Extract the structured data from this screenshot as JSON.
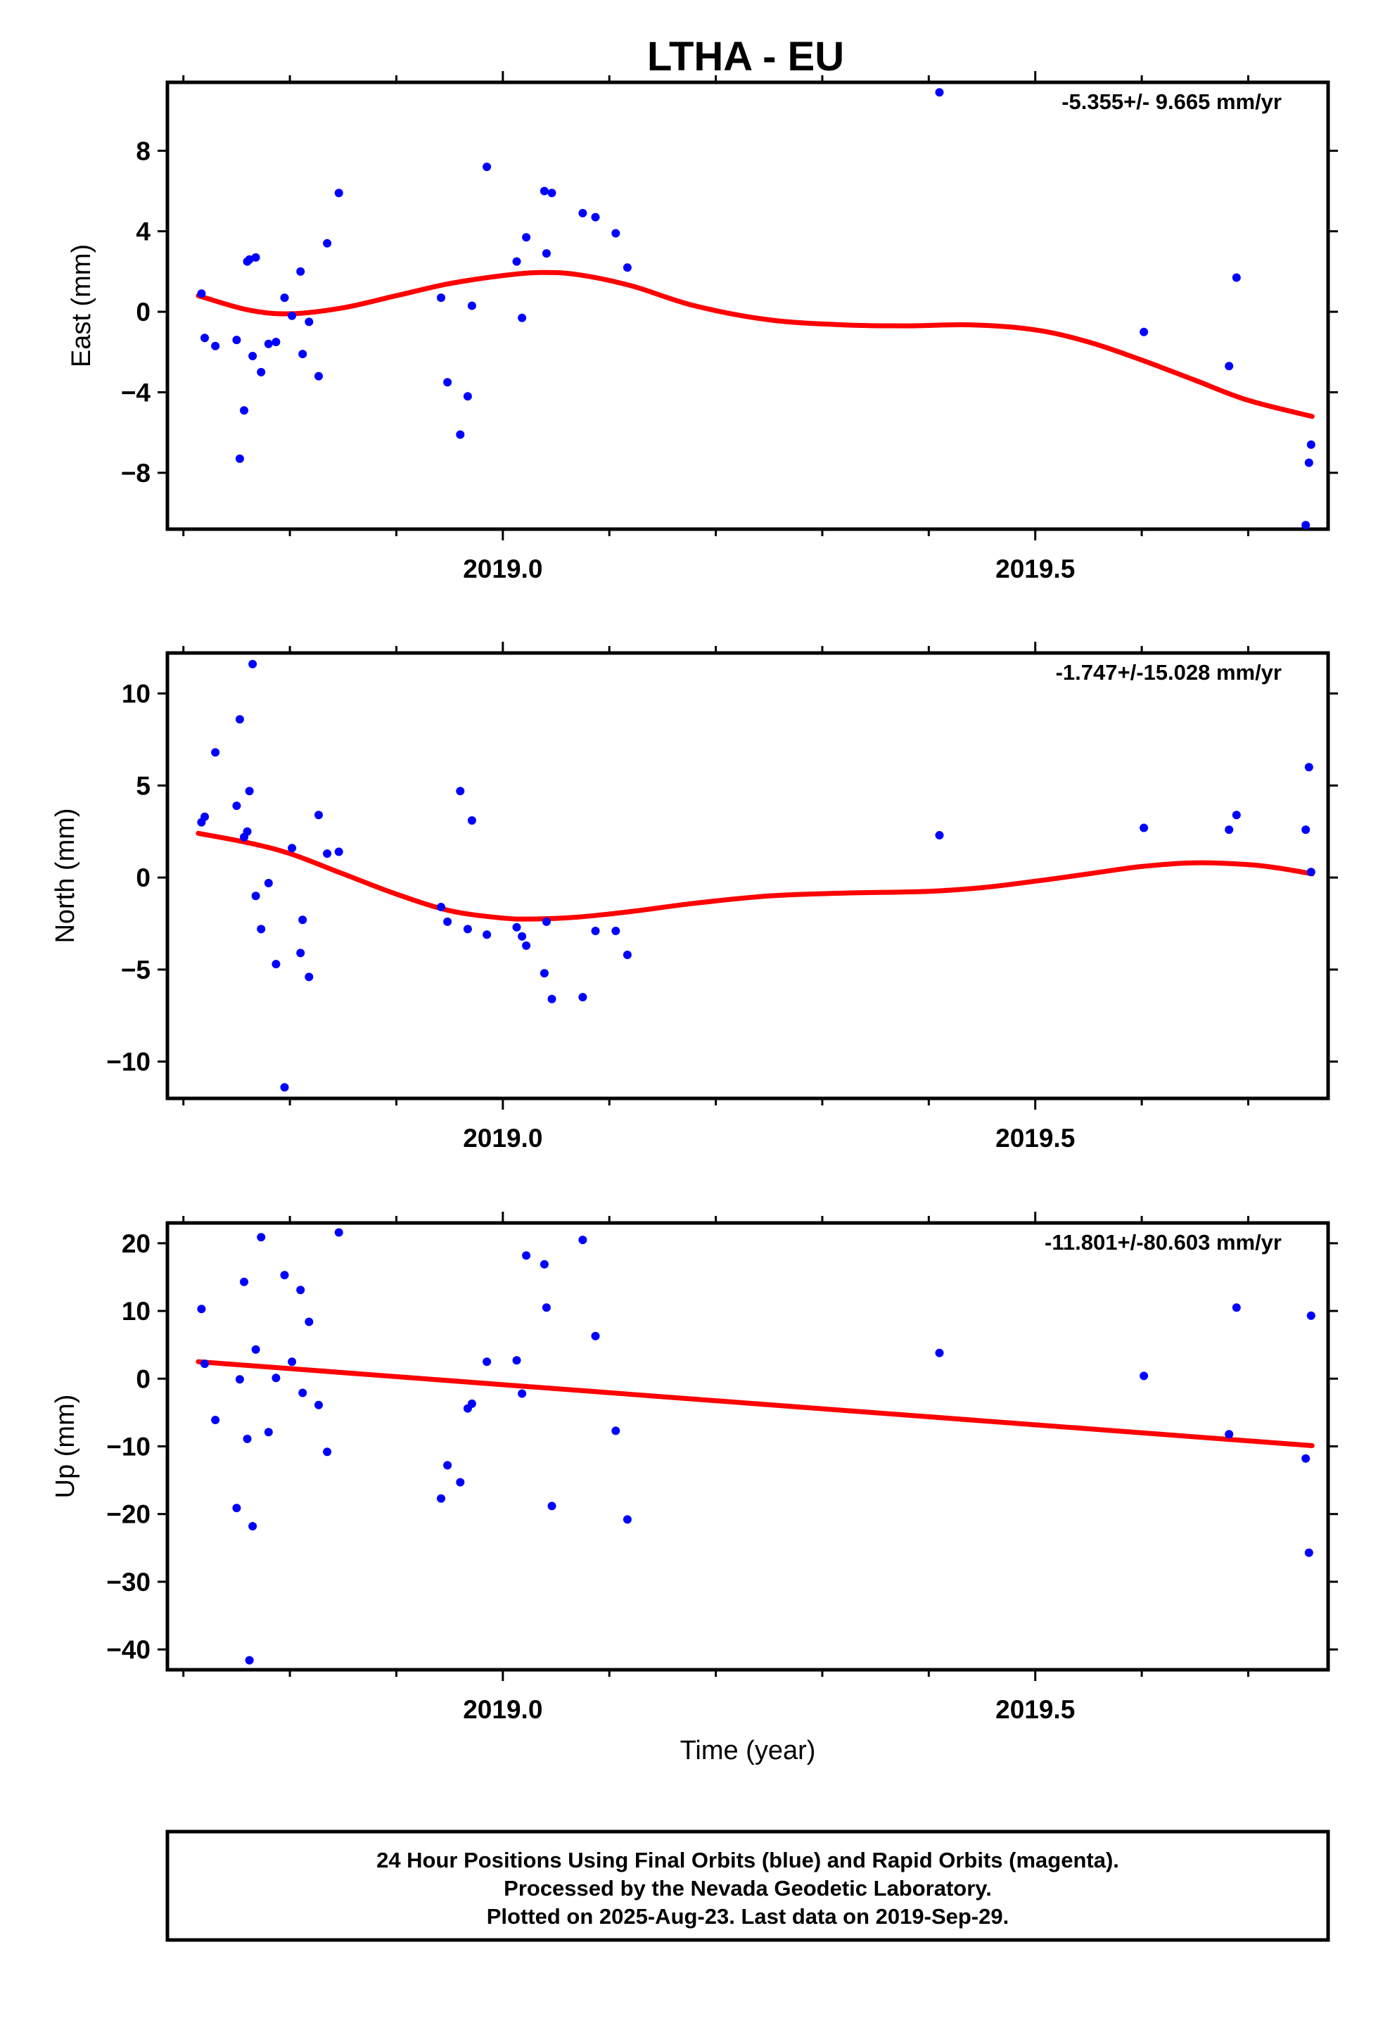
{
  "title": "LTHA - EU",
  "xaxis_label": "Time (year)",
  "footer": {
    "line1": "24 Hour Positions Using Final Orbits (blue) and Rapid Orbits (magenta).",
    "line2": "Processed by the Nevada Geodetic Laboratory.",
    "line3": "Plotted on 2025-Aug-23. Last data on 2019-Sep-29."
  },
  "colors": {
    "points": "#0000ff",
    "fit": "#ff0000",
    "frame": "#000000"
  },
  "chart_data": [
    {
      "type": "scatter",
      "panel": "east",
      "ylabel": "East (mm)",
      "rate_label": "-5.355+/- 9.665 mm/yr",
      "xlim": [
        2018.685,
        2019.775
      ],
      "ylim": [
        -10.8,
        11.4
      ],
      "yticks": [
        -8,
        -4,
        0,
        4,
        8
      ],
      "ytick_labels": [
        "−8",
        "−4",
        "0",
        "4",
        "8"
      ],
      "xticks": [
        2019.0,
        2019.5
      ],
      "xtick_labels": [
        "2019.0",
        "2019.5"
      ],
      "x": [
        2018.717,
        2018.72,
        2018.73,
        2018.75,
        2018.753,
        2018.757,
        2018.76,
        2018.762,
        2018.765,
        2018.768,
        2018.773,
        2018.78,
        2018.787,
        2018.795,
        2018.802,
        2018.81,
        2018.812,
        2018.818,
        2018.827,
        2018.835,
        2018.846,
        2018.942,
        2018.948,
        2018.96,
        2018.967,
        2018.971,
        2018.985,
        2019.013,
        2019.018,
        2019.022,
        2019.039,
        2019.041,
        2019.046,
        2019.075,
        2019.087,
        2019.106,
        2019.117,
        2019.41,
        2019.602,
        2019.682,
        2019.689,
        2019.754,
        2019.757,
        2019.759
      ],
      "y": [
        0.9,
        -1.3,
        -1.7,
        -1.4,
        -7.3,
        -4.9,
        2.5,
        2.6,
        -2.2,
        2.7,
        -3.0,
        -1.6,
        -1.5,
        0.7,
        -0.2,
        2.0,
        -2.1,
        -0.5,
        -3.2,
        3.4,
        5.9,
        0.7,
        -3.5,
        -6.1,
        -4.2,
        0.3,
        7.2,
        2.5,
        -0.3,
        3.7,
        6.0,
        2.9,
        5.9,
        4.9,
        4.7,
        3.9,
        2.2,
        10.9,
        -1.0,
        -2.7,
        1.7,
        -10.6,
        -7.5,
        -6.6
      ],
      "fit": {
        "x": [
          2018.714,
          2018.76,
          2018.8,
          2018.85,
          2018.9,
          2018.95,
          2019.0,
          2019.035,
          2019.07,
          2019.12,
          2019.18,
          2019.25,
          2019.32,
          2019.38,
          2019.44,
          2019.5,
          2019.55,
          2019.6,
          2019.65,
          2019.7,
          2019.76
        ],
        "y": [
          0.8,
          0.1,
          -0.1,
          0.2,
          0.8,
          1.4,
          1.8,
          1.95,
          1.85,
          1.3,
          0.3,
          -0.4,
          -0.65,
          -0.7,
          -0.65,
          -0.9,
          -1.5,
          -2.4,
          -3.4,
          -4.4,
          -5.2
        ]
      }
    },
    {
      "type": "scatter",
      "panel": "north",
      "ylabel": "North (mm)",
      "rate_label": "-1.747+/-15.028 mm/yr",
      "xlim": [
        2018.685,
        2019.775
      ],
      "ylim": [
        -12.0,
        12.2
      ],
      "yticks": [
        -10,
        -5,
        0,
        5,
        10
      ],
      "ytick_labels": [
        "−10",
        "−5",
        "0",
        "5",
        "10"
      ],
      "xticks": [
        2019.0,
        2019.5
      ],
      "xtick_labels": [
        "2019.0",
        "2019.5"
      ],
      "x": [
        2018.717,
        2018.72,
        2018.73,
        2018.75,
        2018.753,
        2018.757,
        2018.76,
        2018.762,
        2018.765,
        2018.768,
        2018.773,
        2018.78,
        2018.787,
        2018.795,
        2018.802,
        2018.81,
        2018.812,
        2018.818,
        2018.827,
        2018.835,
        2018.846,
        2018.942,
        2018.948,
        2018.96,
        2018.967,
        2018.971,
        2018.985,
        2019.013,
        2019.018,
        2019.022,
        2019.039,
        2019.041,
        2019.046,
        2019.075,
        2019.087,
        2019.106,
        2019.117,
        2019.41,
        2019.602,
        2019.682,
        2019.689,
        2019.754,
        2019.757,
        2019.759
      ],
      "y": [
        3.0,
        3.3,
        6.8,
        3.9,
        8.6,
        2.2,
        2.5,
        4.7,
        11.6,
        -1.0,
        -2.8,
        -0.3,
        -4.7,
        -11.4,
        1.6,
        -4.1,
        -2.3,
        -5.4,
        3.4,
        1.3,
        1.4,
        -1.6,
        -2.4,
        4.7,
        -2.8,
        3.1,
        -3.1,
        -2.7,
        -3.2,
        -3.7,
        -5.2,
        -2.4,
        -6.6,
        -6.5,
        -2.9,
        -2.9,
        -4.2,
        2.3,
        2.7,
        2.6,
        3.4,
        2.6,
        6.0,
        0.3
      ],
      "fit": {
        "x": [
          2018.714,
          2018.76,
          2018.8,
          2018.85,
          2018.9,
          2018.95,
          2019.0,
          2019.03,
          2019.07,
          2019.12,
          2019.18,
          2019.25,
          2019.32,
          2019.4,
          2019.45,
          2019.5,
          2019.55,
          2019.6,
          2019.65,
          2019.7,
          2019.73,
          2019.76
        ],
        "y": [
          2.4,
          1.9,
          1.3,
          0.2,
          -0.9,
          -1.8,
          -2.2,
          -2.25,
          -2.15,
          -1.85,
          -1.4,
          -1.0,
          -0.85,
          -0.75,
          -0.55,
          -0.2,
          0.2,
          0.6,
          0.8,
          0.7,
          0.5,
          0.2
        ]
      }
    },
    {
      "type": "scatter",
      "panel": "up",
      "ylabel": "Up (mm)",
      "rate_label": "-11.801+/-80.603 mm/yr",
      "xlim": [
        2018.685,
        2019.775
      ],
      "ylim": [
        -43.0,
        23.0
      ],
      "yticks": [
        -40,
        -30,
        -20,
        -10,
        0,
        10,
        20
      ],
      "ytick_labels": [
        "−40",
        "−30",
        "−20",
        "−10",
        "0",
        "10",
        "20"
      ],
      "xticks": [
        2019.0,
        2019.5
      ],
      "xtick_labels": [
        "2019.0",
        "2019.5"
      ],
      "x": [
        2018.717,
        2018.72,
        2018.73,
        2018.75,
        2018.753,
        2018.757,
        2018.76,
        2018.762,
        2018.765,
        2018.768,
        2018.773,
        2018.78,
        2018.787,
        2018.795,
        2018.802,
        2018.81,
        2018.812,
        2018.818,
        2018.827,
        2018.835,
        2018.846,
        2018.942,
        2018.948,
        2018.96,
        2018.967,
        2018.971,
        2018.985,
        2019.013,
        2019.018,
        2019.022,
        2019.039,
        2019.041,
        2019.046,
        2019.075,
        2019.087,
        2019.106,
        2019.117,
        2019.41,
        2019.602,
        2019.682,
        2019.689,
        2019.754,
        2019.757,
        2019.759
      ],
      "y": [
        10.3,
        2.2,
        -6.1,
        -19.1,
        -0.1,
        14.3,
        -8.9,
        -41.6,
        -21.8,
        4.3,
        20.9,
        -7.9,
        0.1,
        15.3,
        2.5,
        13.1,
        -2.1,
        8.4,
        -3.9,
        -10.8,
        21.6,
        -17.7,
        -12.8,
        -15.3,
        -4.4,
        -3.7,
        2.5,
        2.7,
        -2.2,
        18.2,
        16.9,
        10.5,
        -18.8,
        20.5,
        6.3,
        -7.7,
        -20.8,
        3.8,
        0.4,
        -8.2,
        10.5,
        -11.8,
        -25.7,
        9.3
      ],
      "fit": {
        "x": [
          2018.714,
          2019.76
        ],
        "y": [
          2.5,
          -9.9
        ]
      }
    }
  ]
}
